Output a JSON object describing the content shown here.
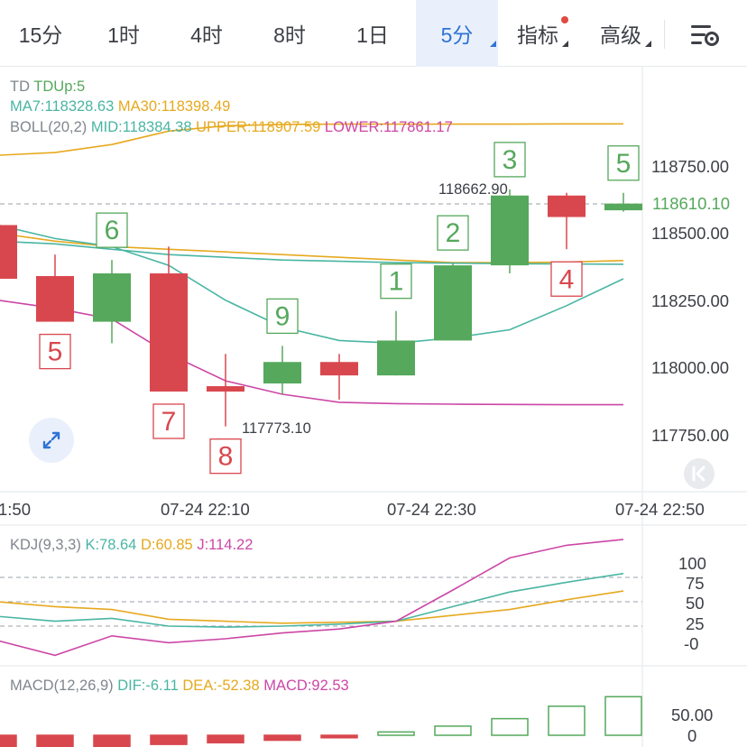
{
  "tabs": [
    {
      "label": "15分",
      "active": false
    },
    {
      "label": "1时",
      "active": false
    },
    {
      "label": "4时",
      "active": false
    },
    {
      "label": "8时",
      "active": false
    },
    {
      "label": "1日",
      "active": false
    },
    {
      "label": "5分",
      "active": true
    },
    {
      "label": "指标",
      "active": false
    },
    {
      "label": "高级",
      "active": false
    }
  ],
  "settings_icon": "chart-settings-icon",
  "main": {
    "td": {
      "label": "TD",
      "value": "TDUp:5"
    },
    "ma7": "MA7:118328.63",
    "ma30": "MA30:118398.49",
    "boll": {
      "label": "BOLL(20,2)",
      "mid": "MID:118384.38",
      "upper": "UPPER:118907.59",
      "lower": "LOWER:117861.17"
    },
    "price_axis": [
      "118750.00",
      "118500.00",
      "118250.00",
      "118000.00",
      "117750.00"
    ],
    "last_price": "118610.10",
    "high_mark": "118662.90",
    "low_mark": "117773.10",
    "time_axis": [
      "1:50",
      "07-24 22:10",
      "07-24 22:30",
      "07-24 22:50"
    ],
    "expand_icon": "expand-arrows-icon",
    "back_icon": "jump-latest-icon"
  },
  "kdj": {
    "label": "KDJ(9,3,3)",
    "k": "K:78.64",
    "d": "D:60.85",
    "j": "J:114.22",
    "axis": [
      "100",
      "75",
      "50",
      "25",
      "-0"
    ]
  },
  "macd": {
    "label": "MACD(12,26,9)",
    "dif": "DIF:-6.11",
    "dea": "DEA:-52.38",
    "macd": "MACD:92.53",
    "axis": [
      "50.00",
      "0"
    ]
  },
  "colors": {
    "up": "#55a85c",
    "down": "#d9474e",
    "ma7": "#49b5a3",
    "ma30": "#e6a91f",
    "lower": "#cc46a6",
    "accent": "#2f73d6"
  },
  "chart_data": {
    "type": "candlestick",
    "candles": [
      {
        "o": 118530,
        "h": 118540,
        "l": 118330,
        "c": 118330,
        "td": null
      },
      {
        "o": 118340,
        "h": 118420,
        "l": 118170,
        "c": 118170,
        "td": "5"
      },
      {
        "o": 118170,
        "h": 118400,
        "l": 118090,
        "c": 118350,
        "td": "6"
      },
      {
        "o": 118350,
        "h": 118450,
        "l": 117910,
        "c": 117910,
        "td": "7"
      },
      {
        "o": 117930,
        "h": 118050,
        "l": 117780,
        "c": 117910,
        "td": "8"
      },
      {
        "o": 117940,
        "h": 118080,
        "l": 117900,
        "c": 118020,
        "td": "9"
      },
      {
        "o": 118020,
        "h": 118050,
        "l": 117880,
        "c": 117970,
        "td": null
      },
      {
        "o": 117970,
        "h": 118210,
        "l": 117970,
        "c": 118100,
        "td": "1"
      },
      {
        "o": 118100,
        "h": 118390,
        "l": 118100,
        "c": 118380,
        "td": "2"
      },
      {
        "o": 118380,
        "h": 118663,
        "l": 118350,
        "c": 118640,
        "td": "3"
      },
      {
        "o": 118640,
        "h": 118650,
        "l": 118440,
        "c": 118560,
        "td": "4"
      },
      {
        "o": 118585,
        "h": 118650,
        "l": 118580,
        "c": 118610,
        "td": "5"
      }
    ],
    "ma7": [
      118530,
      118480,
      118450,
      118380,
      118250,
      118150,
      118100,
      118090,
      118110,
      118140,
      118230,
      118330
    ],
    "ma30": [
      118500,
      118470,
      118450,
      118440,
      118430,
      118420,
      118410,
      118400,
      118390,
      118390,
      118392,
      118398
    ],
    "upper": [
      118790,
      118800,
      118830,
      118880,
      118900,
      118905,
      118906,
      118906,
      118906,
      118906,
      118907,
      118907
    ],
    "mid": [
      118470,
      118460,
      118440,
      118420,
      118410,
      118400,
      118395,
      118390,
      118388,
      118386,
      118385,
      118384
    ],
    "lower": [
      118250,
      118220,
      118180,
      118050,
      117950,
      117900,
      117870,
      117865,
      117863,
      117862,
      117861,
      117861
    ],
    "kdj_k": [
      35,
      30,
      33,
      25,
      24,
      25,
      27,
      30,
      45,
      60,
      70,
      79
    ],
    "kdj_d": [
      50,
      45,
      42,
      32,
      30,
      28,
      29,
      30,
      36,
      42,
      52,
      61
    ],
    "kdj_j": [
      10,
      -5,
      15,
      8,
      12,
      18,
      22,
      30,
      62,
      95,
      108,
      114
    ],
    "macd_hist": [
      -40,
      -35,
      -28,
      -22,
      -18,
      -12,
      -6,
      8,
      22,
      40,
      70,
      93
    ]
  }
}
